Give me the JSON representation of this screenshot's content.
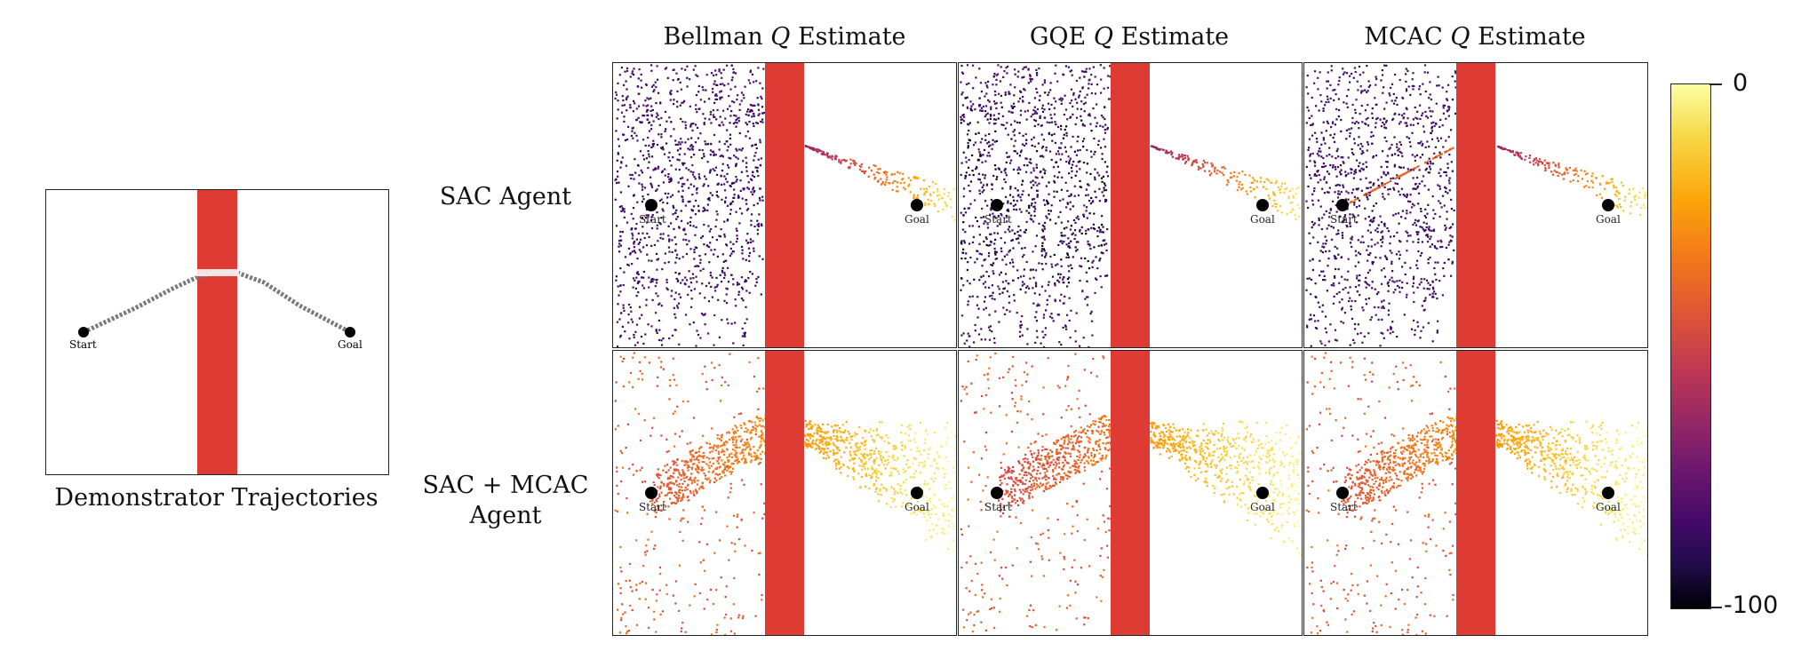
{
  "demo": {
    "caption": "Demonstrator Trajectories",
    "start_label": "Start",
    "goal_label": "Goal"
  },
  "columns": [
    {
      "pre": "Bellman ",
      "q": "Q",
      "post": " Estimate"
    },
    {
      "pre": "GQE ",
      "q": "Q",
      "post": " Estimate"
    },
    {
      "pre": "MCAC ",
      "q": "Q",
      "post": " Estimate"
    }
  ],
  "rows": [
    {
      "label_lines": [
        "SAC Agent"
      ]
    },
    {
      "label_lines": [
        "SAC + MCAC",
        "Agent"
      ]
    }
  ],
  "panel_labels": {
    "start": "Start",
    "goal": "Goal"
  },
  "colorbar": {
    "max_label": "0",
    "min_label": "-100",
    "range": [
      -100,
      0
    ],
    "colormap": "inferno"
  },
  "colors": {
    "obstacle": "#dd3b33",
    "marker": "#000000",
    "demo_path": "#777777"
  }
}
